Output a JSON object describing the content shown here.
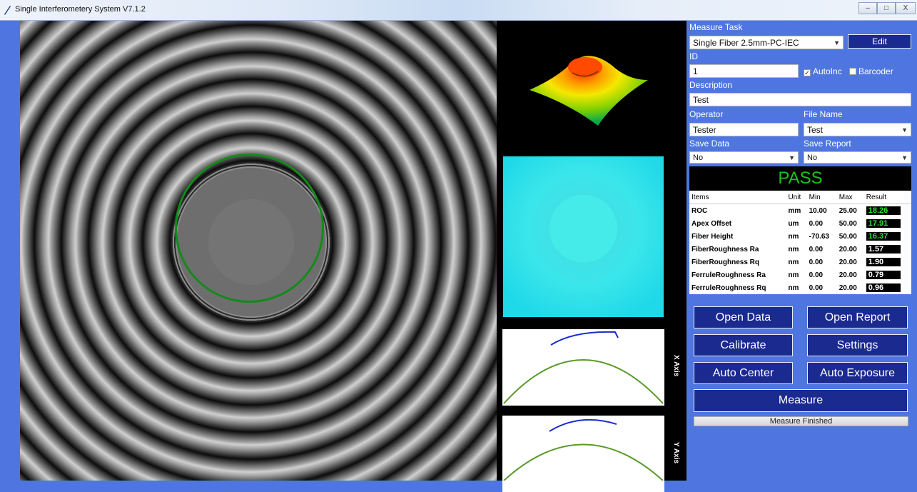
{
  "window": {
    "title": "Single Interferometery System V7.1.2",
    "minimize": "–",
    "maximize": "□",
    "close": "X"
  },
  "axes": {
    "x_label": "X Axis",
    "y_label": "Y Axis"
  },
  "form": {
    "measure_task_label": "Measure Task",
    "measure_task_value": "Single Fiber 2.5mm-PC-IEC",
    "edit_label": "Edit",
    "id_label": "ID",
    "id_value": "1",
    "autoinc_label": "AutoInc",
    "barcoder_label": "Barcoder",
    "description_label": "Description",
    "description_value": "Test",
    "operator_label": "Operator",
    "operator_value": "Tester",
    "filename_label": "File Name",
    "filename_value": "Test",
    "save_data_label": "Save Data",
    "save_data_value": "No",
    "save_report_label": "Save Report",
    "save_report_value": "No"
  },
  "result": {
    "status": "PASS",
    "headers": [
      "Items",
      "Unit",
      "Min",
      "Max",
      "Result"
    ],
    "rows": [
      {
        "item": "ROC",
        "unit": "mm",
        "min": "10.00",
        "max": "25.00",
        "result": "18.26",
        "good": true
      },
      {
        "item": "Apex Offset",
        "unit": "um",
        "min": "0.00",
        "max": "50.00",
        "result": "17.91",
        "good": true
      },
      {
        "item": "Fiber Height",
        "unit": "nm",
        "min": "-70.63",
        "max": "50.00",
        "result": "16.37",
        "good": true
      },
      {
        "item": "FiberRoughness Ra",
        "unit": "nm",
        "min": "0.00",
        "max": "20.00",
        "result": "1.57",
        "good": false
      },
      {
        "item": "FiberRoughness Rq",
        "unit": "nm",
        "min": "0.00",
        "max": "20.00",
        "result": "1.90",
        "good": false
      },
      {
        "item": "FerruleRoughness Ra",
        "unit": "nm",
        "min": "0.00",
        "max": "20.00",
        "result": "0.79",
        "good": false
      },
      {
        "item": "FerruleRoughness Rq",
        "unit": "nm",
        "min": "0.00",
        "max": "20.00",
        "result": "0.96",
        "good": false
      }
    ]
  },
  "buttons": {
    "open_data": "Open Data",
    "open_report": "Open Report",
    "calibrate": "Calibrate",
    "settings": "Settings",
    "auto_center": "Auto Center",
    "auto_exposure": "Auto Exposure",
    "measure": "Measure"
  },
  "status_text": "Measure Finished",
  "colors": {
    "panel": "#4f76e0",
    "button": "#1b2a8f",
    "pass": "#19c31d",
    "ring": "#138a1a"
  }
}
